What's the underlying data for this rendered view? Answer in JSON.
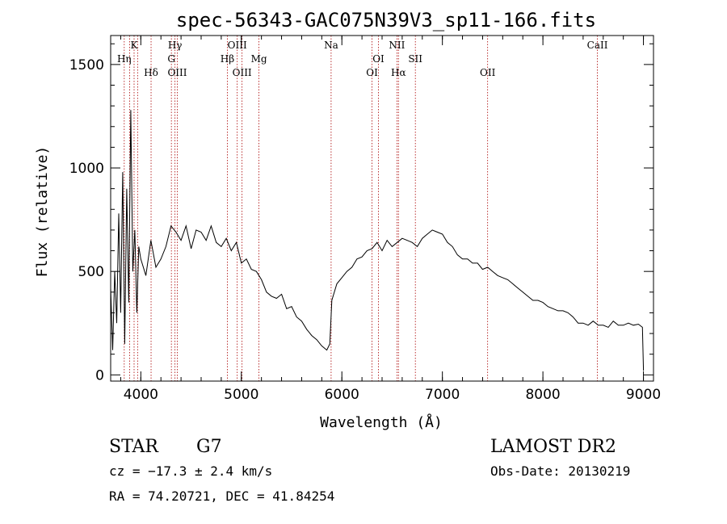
{
  "chart_data": {
    "type": "line",
    "title": "spec-56343-GAC075N39V3_sp11-166.fits",
    "xlabel": "Wavelength (Å)",
    "ylabel": "Flux (relative)",
    "xlim": [
      3700,
      9100
    ],
    "ylim": [
      -30,
      1640
    ],
    "x_ticks": [
      4000,
      5000,
      6000,
      7000,
      8000,
      9000
    ],
    "y_ticks": [
      0,
      500,
      1000,
      1500
    ],
    "x_tick_labels": [
      "4000",
      "5000",
      "6000",
      "7000",
      "8000",
      "9000"
    ],
    "y_tick_labels": [
      "0",
      "500",
      "1000",
      "1500"
    ],
    "series": [
      {
        "x": [
          3700,
          3720,
          3740,
          3760,
          3780,
          3800,
          3820,
          3840,
          3860,
          3880,
          3900,
          3920,
          3940,
          3960,
          3980,
          4000,
          4050,
          4100,
          4150,
          4200,
          4250,
          4300,
          4350,
          4400,
          4450,
          4500,
          4550,
          4600,
          4650,
          4700,
          4750,
          4800,
          4850,
          4900,
          4950,
          5000,
          5050,
          5100,
          5150,
          5200,
          5250,
          5300,
          5350,
          5400,
          5450,
          5500,
          5550,
          5600,
          5650,
          5700,
          5750,
          5800,
          5850,
          5880,
          5900,
          5950,
          6000,
          6050,
          6100,
          6150,
          6200,
          6250,
          6300,
          6350,
          6400,
          6450,
          6500,
          6550,
          6600,
          6650,
          6700,
          6750,
          6800,
          6850,
          6900,
          6950,
          7000,
          7050,
          7100,
          7150,
          7200,
          7250,
          7300,
          7350,
          7400,
          7450,
          7500,
          7550,
          7600,
          7650,
          7700,
          7750,
          7800,
          7850,
          7900,
          7950,
          8000,
          8050,
          8100,
          8150,
          8200,
          8250,
          8300,
          8350,
          8400,
          8450,
          8500,
          8550,
          8600,
          8650,
          8700,
          8750,
          8800,
          8850,
          8900,
          8950,
          8990,
          9000
        ],
        "y": [
          420,
          120,
          500,
          250,
          780,
          300,
          980,
          150,
          900,
          350,
          1280,
          500,
          700,
          300,
          620,
          560,
          480,
          650,
          520,
          560,
          620,
          720,
          690,
          650,
          720,
          610,
          700,
          690,
          650,
          720,
          640,
          620,
          660,
          600,
          640,
          540,
          560,
          510,
          500,
          460,
          400,
          380,
          370,
          390,
          320,
          330,
          280,
          260,
          220,
          190,
          170,
          140,
          120,
          150,
          360,
          440,
          470,
          500,
          520,
          560,
          570,
          600,
          610,
          640,
          600,
          650,
          620,
          640,
          660,
          650,
          640,
          620,
          660,
          680,
          700,
          690,
          680,
          640,
          620,
          580,
          560,
          560,
          540,
          540,
          510,
          520,
          500,
          480,
          470,
          460,
          440,
          420,
          400,
          380,
          360,
          360,
          350,
          330,
          320,
          310,
          310,
          300,
          280,
          250,
          250,
          240,
          260,
          240,
          240,
          230,
          260,
          240,
          240,
          250,
          240,
          245,
          230,
          20
        ]
      }
    ],
    "annotations": [
      {
        "x": 3835,
        "label": "Hη"
      },
      {
        "x": 3889,
        "label": ""
      },
      {
        "x": 3933,
        "label": "K"
      },
      {
        "x": 3968,
        "label": ""
      },
      {
        "x": 4102,
        "label": "Hδ"
      },
      {
        "x": 4304,
        "label": "G"
      },
      {
        "x": 4340,
        "label": "Hγ"
      },
      {
        "x": 4363,
        "label": "OIII"
      },
      {
        "x": 4861,
        "label": "Hβ"
      },
      {
        "x": 4959,
        "label": "OIII"
      },
      {
        "x": 5007,
        "label": "OIII"
      },
      {
        "x": 5175,
        "label": "Mg"
      },
      {
        "x": 5893,
        "label": "Na"
      },
      {
        "x": 6300,
        "label": "OI"
      },
      {
        "x": 6364,
        "label": "OI"
      },
      {
        "x": 6548,
        "label": "NII"
      },
      {
        "x": 6563,
        "label": "Hα"
      },
      {
        "x": 6731,
        "label": "SII"
      },
      {
        "x": 7450,
        "label": "OII"
      },
      {
        "x": 8542,
        "label": "CaII"
      }
    ]
  },
  "info": {
    "class_label": "STAR",
    "subclass_label": "G7",
    "cz_text": "cz = −17.3 ± 2.4 km/s",
    "coords_text": "RA =  74.20721, DEC =  41.84254",
    "survey_label": "LAMOST DR2",
    "obs_date_text": "Obs-Date: 20130219"
  },
  "colors": {
    "spectrum": "#000000",
    "line_marker": "#aa0000",
    "axes": "#000000"
  }
}
